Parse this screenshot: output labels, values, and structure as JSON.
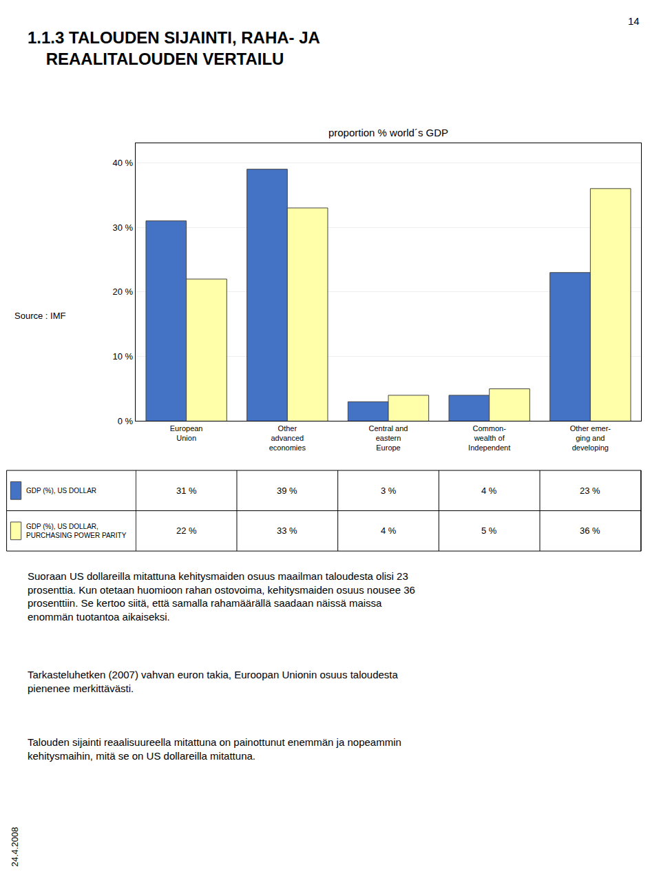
{
  "page_number": "14",
  "title": "1.1.3 TALOUDEN SIJAINTI, RAHA- JA\n    REAALITALOUDEN VERTAILU",
  "text": [
    "Suoraan US dollareilla mitattuna kehitysmaiden osuus maailman taloudesta olisi 23\nprosenttia. Kun otetaan huomioon rahan ostovoima, kehitysmaiden osuus nousee 36\nprosenttiin. Se kertoo siitä, että samalla rahamäärällä saadaan näissä maissa\nenommän tuotantoa aikaiseksi.",
    "Tarkasteluhetken (2007) vahvan euron takia, Euroopan Unionin osuus taloudesta\npienenee merkittävästi.",
    "Talouden sijainti reaalisuureella mitattuna on painottunut enemmän ja nopeammin\nkehitysmaihin, mitä se on US dollareilla mitattuna."
  ],
  "date": "24.4.2008",
  "chart_data": {
    "type": "bar",
    "title": "proportion % world´s GDP",
    "categories": [
      "European\nUnion",
      "Other\nadvanced\neconomies",
      "Central and\neastern\nEurope",
      "Common-\nwealth of\nIndependent",
      "Other emer-\nging and\ndeveloping"
    ],
    "series": [
      {
        "name": "GDP (%), US DOLLAR",
        "color": "#4472C4",
        "values": [
          31,
          39,
          3,
          4,
          23
        ],
        "value_labels": [
          "31 %",
          "39 %",
          "3 %",
          "4 %",
          "23 %"
        ]
      },
      {
        "name": "GDP (%), US DOLLAR,\nPURCHASING POWER PARITY",
        "color": "#FFFFAA",
        "values": [
          22,
          33,
          4,
          5,
          36
        ],
        "value_labels": [
          "22 %",
          "33 %",
          "4 %",
          "5 %",
          "36 %"
        ]
      }
    ],
    "ylim": [
      0,
      43
    ],
    "yticks": [
      {
        "value": 0,
        "label": "0 %"
      },
      {
        "value": 10,
        "label": "10 %"
      },
      {
        "value": 20,
        "label": "20 %"
      },
      {
        "value": 30,
        "label": "30 %"
      },
      {
        "value": 40,
        "label": "40 %"
      }
    ],
    "grid": true,
    "annotations": [
      "Source : IMF"
    ]
  }
}
